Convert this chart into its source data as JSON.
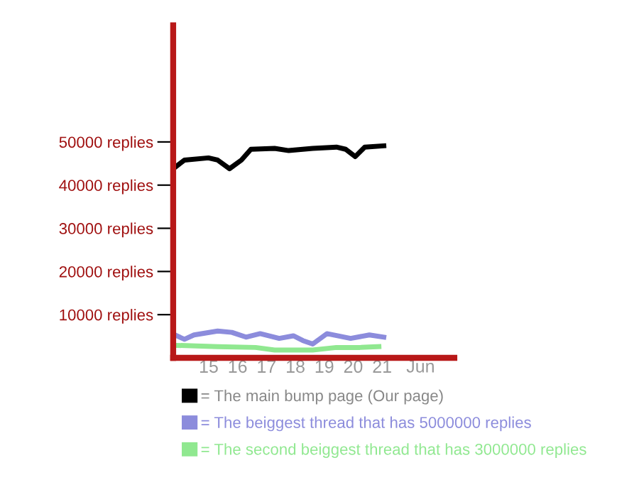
{
  "chart_data": {
    "type": "line",
    "series": [
      {
        "name": "= The main bump page (Our page)",
        "color": "#000000",
        "x": [
          13.83,
          14.16,
          14.99,
          15.31,
          15.72,
          16.13,
          16.46,
          17.28,
          17.77,
          18.6,
          19.42,
          19.74,
          20.07,
          20.4,
          21.06
        ],
        "values": [
          44100,
          45800,
          46300,
          45800,
          43800,
          45800,
          48300,
          48500,
          48000,
          48500,
          48800,
          48300,
          46600,
          48800,
          49100
        ]
      },
      {
        "name": "= The beiggest thread that has 5000000 replies",
        "color": "#8c8cdc",
        "x": [
          13.83,
          14.16,
          14.49,
          15.31,
          15.8,
          16.29,
          16.78,
          17.44,
          17.93,
          18.26,
          18.6,
          19.09,
          19.91,
          20.56,
          21.06
        ],
        "values": [
          5300,
          4300,
          5300,
          6200,
          5900,
          4800,
          5600,
          4500,
          5100,
          4000,
          3200,
          5600,
          4500,
          5300,
          4800
        ]
      },
      {
        "name": "= The second beiggest thread that has 3000000 replies",
        "color": "#90e890",
        "x": [
          13.83,
          15.31,
          16.62,
          17.28,
          18.6,
          19.42,
          20.23,
          20.89
        ],
        "values": [
          2900,
          2600,
          2400,
          1800,
          1800,
          2400,
          2400,
          2600
        ]
      }
    ],
    "xlabel": "Jun",
    "xlim": [
      13.77,
      23.5
    ],
    "xticks": [
      15,
      16,
      17,
      18,
      19,
      20,
      21
    ],
    "ylim": [
      0,
      77000
    ],
    "yticks": [
      {
        "value": 10000,
        "label": "10000 replies"
      },
      {
        "value": 20000,
        "label": "20000 replies"
      },
      {
        "value": 30000,
        "label": "30000 replies"
      },
      {
        "value": 40000,
        "label": "40000 replies"
      },
      {
        "value": 50000,
        "label": "50000 replies"
      }
    ],
    "legend": "bottom",
    "grid": false,
    "marker": "none",
    "line_style": "solid"
  }
}
